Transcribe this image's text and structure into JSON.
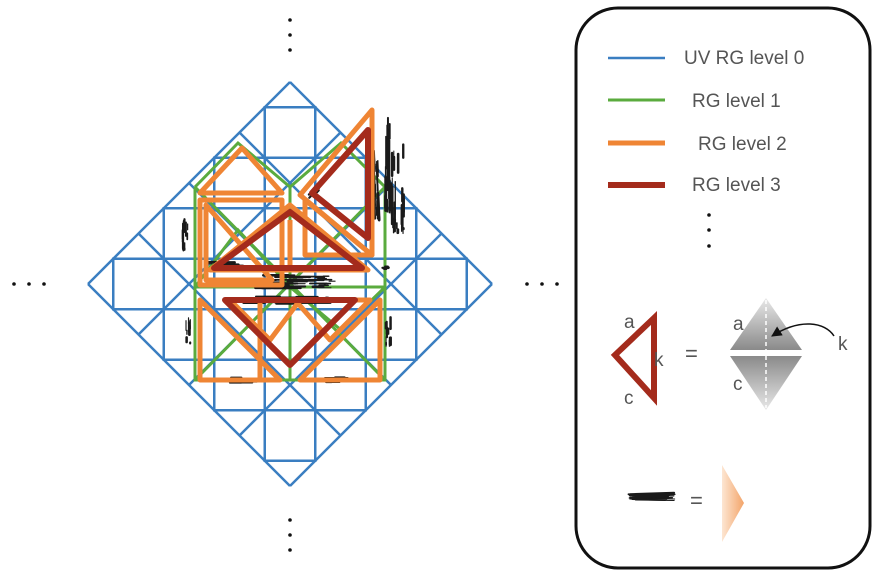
{
  "colors": {
    "level0": "#3a7ec1",
    "level1": "#5aab3e",
    "level2": "#ef8534",
    "level3": "#a42b1c",
    "hatch": "#1a1a1a",
    "text": "#555555"
  },
  "legend": {
    "items": [
      {
        "label": "UV RG level 0",
        "color": "#3a7ec1"
      },
      {
        "label": "RG level 1",
        "color": "#5aab3e"
      },
      {
        "label": "RG level 2",
        "color": "#ef8534"
      },
      {
        "label": "RG level 3",
        "color": "#a42b1c"
      }
    ],
    "key": {
      "a_label": "a",
      "k_label": "k",
      "c_label": "c",
      "equals": "=",
      "diamond_a": "a",
      "diamond_c": "c",
      "arrow_k": "k",
      "stroke_equals": "="
    }
  },
  "ellipsis": "..."
}
